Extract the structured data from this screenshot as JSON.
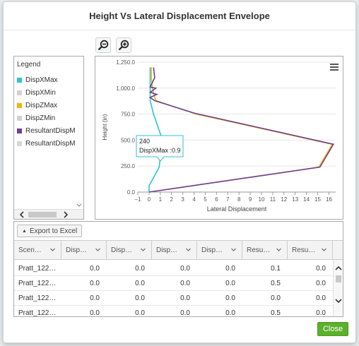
{
  "dialog": {
    "title": "Height Vs Lateral Displacement Envelope",
    "close_label": "Close"
  },
  "toolbar": {
    "zoom_out_icon": "zoom-out-icon",
    "zoom_in_icon": "zoom-in-icon"
  },
  "legend": {
    "title": "Legend",
    "items": [
      {
        "label": "DispXMax",
        "color": "#2bc4d6"
      },
      {
        "label": "DispXMin",
        "color": "#d9cfcf"
      },
      {
        "label": "DispZMax",
        "color": "#f5b400"
      },
      {
        "label": "DispZMin",
        "color": "#d0d0d0"
      },
      {
        "label": "ResultantDispMax",
        "color": "#6b3f9a"
      },
      {
        "label": "ResultantDispMin",
        "color": "#d6d6d6"
      }
    ]
  },
  "chart_data": {
    "type": "line",
    "xlabel": "Lateral Displacement",
    "ylabel": "Height (in)",
    "xlim": [
      -1,
      16.6
    ],
    "ylim": [
      0,
      1250
    ],
    "x_ticks": [
      "−1",
      "0",
      "1",
      "2",
      "3",
      "4",
      "5",
      "6",
      "7",
      "8",
      "9",
      "10",
      "11",
      "12",
      "13",
      "14",
      "15",
      "16"
    ],
    "y_ticks": [
      "0.0",
      "250.0",
      "500.0",
      "750.0",
      "1,000.0",
      "1,250.0"
    ],
    "grid": "horizontal",
    "series": [
      {
        "name": "DispXMax",
        "color": "#2bc4d6",
        "points": [
          [
            0,
            0
          ],
          [
            0,
            60
          ],
          [
            0.9,
            240
          ],
          [
            1.2,
            500
          ],
          [
            0.4,
            750
          ],
          [
            0.1,
            880
          ],
          [
            0.1,
            950
          ],
          [
            0.1,
            1000
          ],
          [
            0.1,
            1200
          ]
        ]
      },
      {
        "name": "DispZMax",
        "color": "#f5b400",
        "points": [
          [
            0,
            0
          ],
          [
            15.1,
            240
          ],
          [
            16.3,
            460
          ],
          [
            4.2,
            750
          ],
          [
            0.6,
            880
          ],
          [
            0.4,
            950
          ],
          [
            0.3,
            1000
          ],
          [
            0.2,
            1100
          ],
          [
            0.2,
            1200
          ]
        ]
      },
      {
        "name": "ResultantDispMax",
        "color": "#6b3f9a",
        "points": [
          [
            0,
            0
          ],
          [
            15.2,
            240
          ],
          [
            16.4,
            460
          ],
          [
            4.0,
            760
          ],
          [
            0.5,
            880
          ],
          [
            0.1,
            910
          ],
          [
            0.7,
            940
          ],
          [
            0.1,
            960
          ],
          [
            0.6,
            1000
          ],
          [
            0.1,
            1010
          ],
          [
            0.5,
            1100
          ],
          [
            0.4,
            1200
          ]
        ]
      }
    ],
    "tooltip": {
      "line1": "240",
      "line2": "DispXMax :0.9"
    }
  },
  "grid": {
    "export_label": "Export to Excel",
    "columns": [
      "Scen…",
      "Disp…",
      "Disp…",
      "Disp…",
      "Disp…",
      "Resu…",
      "Resu…"
    ],
    "rows": [
      [
        "Pratt_122…",
        "0.0",
        "0.0",
        "0.0",
        "0.0",
        "0.1",
        "0.0"
      ],
      [
        "Pratt_122…",
        "0.0",
        "0.0",
        "0.0",
        "0.0",
        "0.5",
        "0.0"
      ],
      [
        "Pratt_122…",
        "0.0",
        "0.0",
        "0.0",
        "0.0",
        "0.0",
        "0.0"
      ],
      [
        "Pratt_122…",
        "0.0",
        "0.0",
        "0.0",
        "0.0",
        "0.5",
        "0.0"
      ]
    ]
  }
}
